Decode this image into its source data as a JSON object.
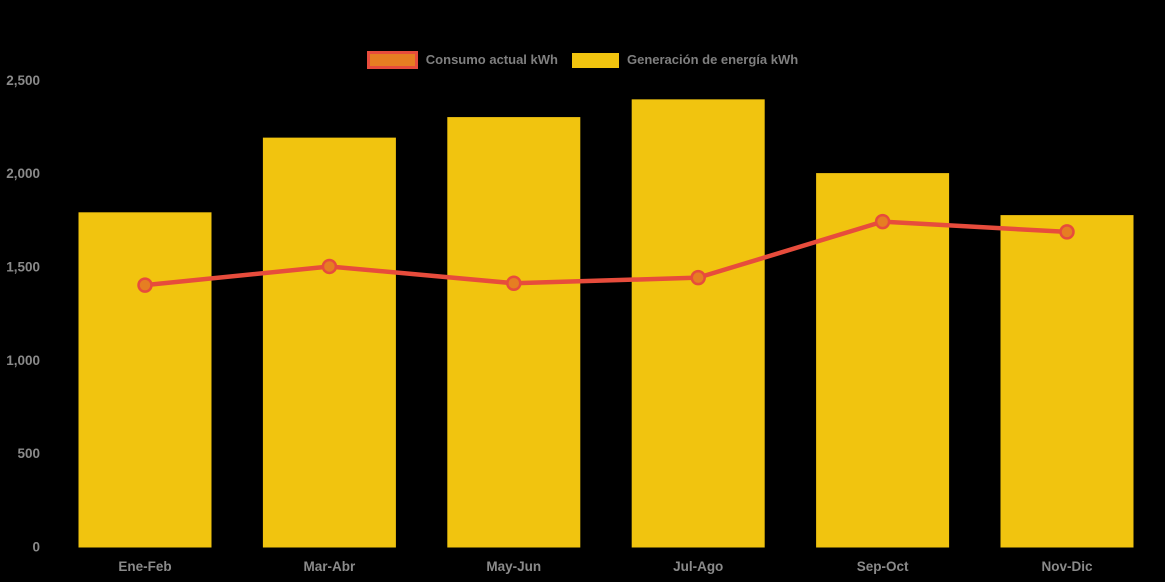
{
  "chart_data": {
    "type": "bar",
    "subtype": "bar-line-combo",
    "title": "",
    "categories": [
      "Ene-Feb",
      "Mar-Abr",
      "May-Jun",
      "Jul-Ago",
      "Sep-Oct",
      "Nov-Dic"
    ],
    "series": [
      {
        "name": "Consumo actual kWh",
        "type": "line",
        "values": [
          1400,
          1500,
          1410,
          1440,
          1740,
          1685
        ],
        "line_color": "#e74c3c",
        "point_fill": "#e67e22",
        "point_border": "#e74c3c"
      },
      {
        "name": "Generación de energía kWh",
        "type": "bar",
        "values": [
          1790,
          2190,
          2300,
          2395,
          2000,
          1775
        ],
        "color": "#f1c40f"
      }
    ],
    "xlabel": "",
    "ylabel": "",
    "ylim": [
      0,
      2500
    ],
    "yticks": [
      0,
      500,
      1000,
      1500,
      2000,
      2500
    ],
    "ytick_labels": [
      "0",
      "500",
      "1,000",
      "1,500",
      "2,000",
      "2,500"
    ],
    "grid": "off",
    "legend_position": "top-center",
    "background_color": "#000000",
    "axis_label_color": "#8a8a8a"
  },
  "legend": {
    "items": [
      {
        "label": "Consumo actual kWh",
        "fill": "#e67e22",
        "border": "#e74c3c"
      },
      {
        "label": "Generación de energía kWh",
        "fill": "#f1c40f",
        "border": "#f1c40f"
      }
    ]
  }
}
